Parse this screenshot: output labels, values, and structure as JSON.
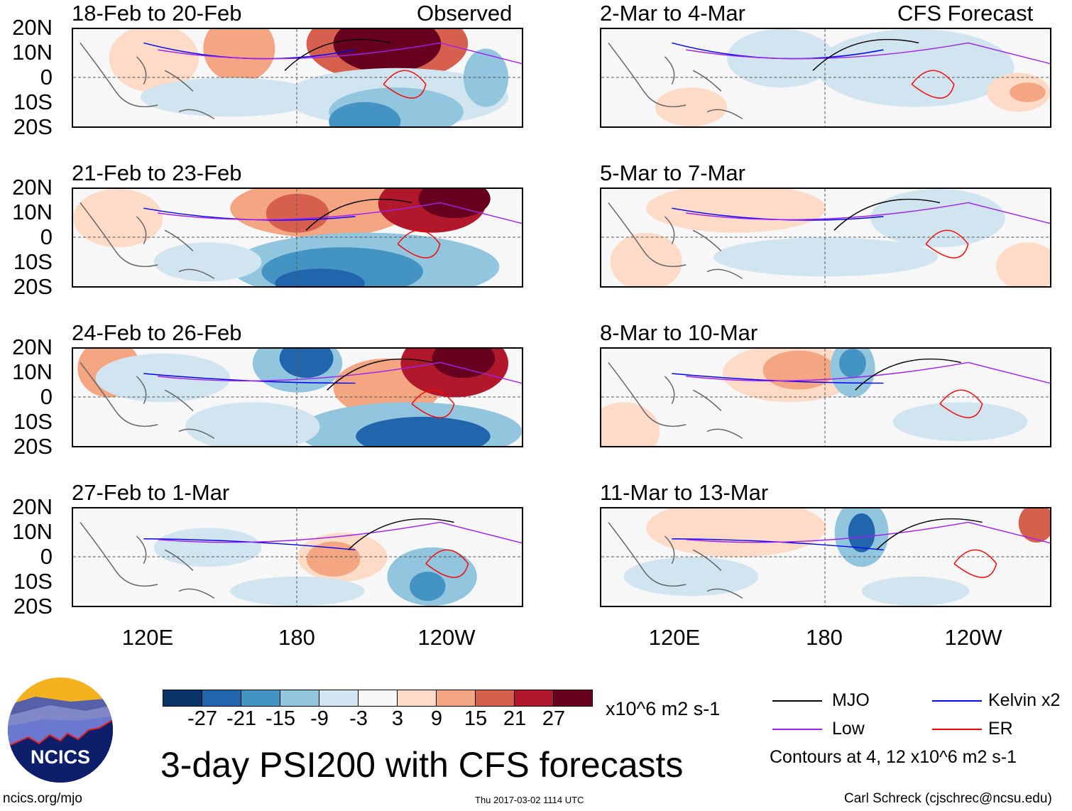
{
  "headers": {
    "observed": "Observed",
    "forecast": "CFS Forecast"
  },
  "observed_panels": [
    "18-Feb to 20-Feb",
    "21-Feb to 23-Feb",
    "24-Feb to 26-Feb",
    "27-Feb to 1-Mar"
  ],
  "forecast_panels": [
    "2-Mar to 4-Mar",
    "5-Mar to 7-Mar",
    "8-Mar to 10-Mar",
    "11-Mar to 13-Mar"
  ],
  "y_ticks": [
    "20N",
    "10N",
    "0",
    "10S",
    "20S"
  ],
  "x_ticks": [
    "120E",
    "180",
    "120W"
  ],
  "colorbar": {
    "colors": [
      "#0b3265",
      "#2166ac",
      "#4393c3",
      "#92c5de",
      "#d1e5f0",
      "#f7f7f7",
      "#fddbc7",
      "#f4a582",
      "#d6604d",
      "#b2182b",
      "#67001f"
    ],
    "labels": [
      "-27",
      "-21",
      "-15",
      "-9",
      "-3",
      "3",
      "9",
      "15",
      "21",
      "27"
    ],
    "units": "x10^6 m2 s-1"
  },
  "legend": {
    "items": [
      {
        "label": "MJO",
        "color": "#000000"
      },
      {
        "label": "Kelvin x2",
        "color": "#0000ff"
      },
      {
        "label": "Low",
        "color": "#a020f0"
      },
      {
        "label": "ER",
        "color": "#ff0000"
      }
    ],
    "contours_note": "Contours at 4, 12 x10^6 m2 s-1"
  },
  "title": "3-day PSI200 with CFS forecasts",
  "logo": {
    "text": "NCICS"
  },
  "footer": {
    "url": "ncics.org/mjo",
    "timestamp": "Thu 2017-03-02 1114 UTC",
    "credit": "Carl Schreck (cjschrec@ncsu.edu)"
  }
}
